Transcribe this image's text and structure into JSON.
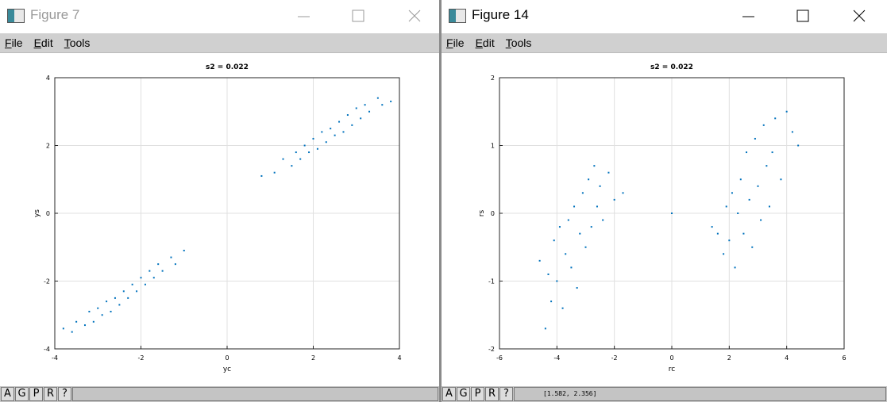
{
  "windows": [
    {
      "title": "Figure 7",
      "menu": [
        "File",
        "Edit",
        "Tools"
      ],
      "toolbar": [
        "A",
        "G",
        "P",
        "R",
        "?"
      ]
    },
    {
      "title": "Figure 14",
      "menu": [
        "File",
        "Edit",
        "Tools"
      ],
      "toolbar": [
        "A",
        "G",
        "P",
        "R",
        "?"
      ],
      "status": "[1.582, 2.356]"
    }
  ],
  "chart_data": [
    {
      "type": "scatter",
      "title": "s2 = 0.022",
      "x_label": "yc",
      "y_label": "ys",
      "xlim": [
        -4,
        4
      ],
      "ylim": [
        -4,
        4
      ],
      "xticks": [
        -4,
        -2,
        0,
        2,
        4
      ],
      "yticks": [
        -4,
        -2,
        0,
        2,
        4
      ],
      "grid": true,
      "series": [
        {
          "color": "#0072bd",
          "x": [
            -3.8,
            -3.6,
            -3.5,
            -3.3,
            -3.2,
            -3.1,
            -3.0,
            -2.9,
            -2.8,
            -2.7,
            -2.6,
            -2.5,
            -2.4,
            -2.3,
            -2.2,
            -2.1,
            -2.0,
            -1.9,
            -1.8,
            -1.7,
            -1.6,
            -1.5,
            -1.3,
            -1.2,
            -1.0,
            0.8,
            1.1,
            1.3,
            1.5,
            1.6,
            1.7,
            1.8,
            1.9,
            2.0,
            2.1,
            2.2,
            2.3,
            2.4,
            2.5,
            2.6,
            2.7,
            2.8,
            2.9,
            3.0,
            3.1,
            3.2,
            3.3,
            3.5,
            3.6,
            3.8
          ],
          "y": [
            -3.4,
            -3.5,
            -3.2,
            -3.3,
            -2.9,
            -3.2,
            -2.8,
            -3.0,
            -2.6,
            -2.9,
            -2.5,
            -2.7,
            -2.3,
            -2.5,
            -2.1,
            -2.3,
            -1.9,
            -2.1,
            -1.7,
            -1.9,
            -1.5,
            -1.7,
            -1.3,
            -1.5,
            -1.1,
            1.1,
            1.2,
            1.6,
            1.4,
            1.8,
            1.6,
            2.0,
            1.8,
            2.2,
            1.9,
            2.4,
            2.1,
            2.5,
            2.3,
            2.7,
            2.4,
            2.9,
            2.6,
            3.1,
            2.8,
            3.2,
            3.0,
            3.4,
            3.2,
            3.3
          ]
        }
      ]
    },
    {
      "type": "scatter",
      "title": "s2 = 0.022",
      "x_label": "rc",
      "y_label": "rs",
      "xlim": [
        -6,
        6
      ],
      "ylim": [
        -2,
        2
      ],
      "xticks": [
        -6,
        -4,
        -2,
        0,
        2,
        4,
        6
      ],
      "yticks": [
        -2,
        -1,
        0,
        1,
        2
      ],
      "grid": true,
      "series": [
        {
          "color": "#0072bd",
          "x": [
            -4.6,
            -4.4,
            -4.3,
            -4.2,
            -4.1,
            -4.0,
            -3.9,
            -3.8,
            -3.7,
            -3.6,
            -3.5,
            -3.4,
            -3.3,
            -3.2,
            -3.1,
            -3.0,
            -2.9,
            -2.8,
            -2.7,
            -2.6,
            -2.5,
            -2.4,
            -2.2,
            -2.0,
            -1.7,
            0,
            1.4,
            1.6,
            1.8,
            1.9,
            2.0,
            2.1,
            2.2,
            2.3,
            2.4,
            2.5,
            2.6,
            2.7,
            2.8,
            2.9,
            3.0,
            3.1,
            3.2,
            3.3,
            3.4,
            3.5,
            3.6,
            3.8,
            4.0,
            4.2,
            4.4
          ],
          "y": [
            -0.7,
            -1.7,
            -0.9,
            -1.3,
            -0.4,
            -1.0,
            -0.2,
            -1.4,
            -0.6,
            -0.1,
            -0.8,
            0.1,
            -1.1,
            -0.3,
            0.3,
            -0.5,
            0.5,
            -0.2,
            0.7,
            0.1,
            0.4,
            -0.1,
            0.6,
            0.2,
            0.3,
            0,
            -0.2,
            -0.3,
            -0.6,
            0.1,
            -0.4,
            0.3,
            -0.8,
            0.0,
            0.5,
            -0.3,
            0.9,
            0.2,
            -0.5,
            1.1,
            0.4,
            -0.1,
            1.3,
            0.7,
            0.1,
            0.9,
            1.4,
            0.5,
            1.5,
            1.2,
            1.0
          ]
        }
      ]
    }
  ]
}
